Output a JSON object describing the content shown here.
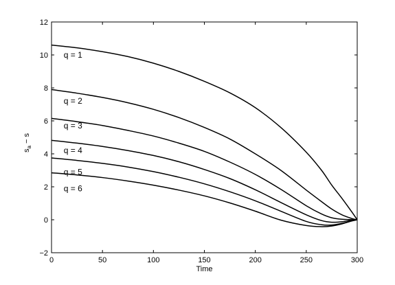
{
  "chart_data": {
    "type": "line",
    "title": "",
    "xlabel": "Time",
    "ylabel": {
      "base": "s",
      "sub": "a",
      "rest": " − s"
    },
    "xlim": [
      0,
      300
    ],
    "ylim": [
      -2,
      12
    ],
    "xticks": [
      0,
      50,
      100,
      150,
      200,
      250,
      300
    ],
    "yticks": [
      -2,
      0,
      2,
      4,
      6,
      8,
      10,
      12
    ],
    "grid": false,
    "legend": "none",
    "line_color": "#000000",
    "series": [
      {
        "name": "q = 1",
        "label_at": [
          12,
          10.0
        ],
        "points": [
          [
            0,
            10.6
          ],
          [
            25,
            10.43
          ],
          [
            50,
            10.2
          ],
          [
            75,
            9.9
          ],
          [
            100,
            9.5
          ],
          [
            125,
            9.0
          ],
          [
            150,
            8.4
          ],
          [
            175,
            7.7
          ],
          [
            200,
            6.8
          ],
          [
            225,
            5.6
          ],
          [
            250,
            4.1
          ],
          [
            265,
            3.0
          ],
          [
            275,
            2.1
          ],
          [
            285,
            1.3
          ],
          [
            295,
            0.45
          ],
          [
            300,
            0
          ]
        ]
      },
      {
        "name": "q = 2",
        "label_at": [
          12,
          7.2
        ],
        "points": [
          [
            0,
            7.9
          ],
          [
            25,
            7.68
          ],
          [
            50,
            7.42
          ],
          [
            75,
            7.1
          ],
          [
            100,
            6.7
          ],
          [
            125,
            6.2
          ],
          [
            150,
            5.6
          ],
          [
            175,
            4.9
          ],
          [
            200,
            4.0
          ],
          [
            225,
            3.0
          ],
          [
            250,
            1.8
          ],
          [
            265,
            1.1
          ],
          [
            275,
            0.65
          ],
          [
            285,
            0.3
          ],
          [
            295,
            0.07
          ],
          [
            300,
            0
          ]
        ]
      },
      {
        "name": "q = 3",
        "label_at": [
          12,
          5.7
        ],
        "points": [
          [
            0,
            6.15
          ],
          [
            25,
            5.95
          ],
          [
            50,
            5.72
          ],
          [
            75,
            5.42
          ],
          [
            100,
            5.08
          ],
          [
            125,
            4.65
          ],
          [
            150,
            4.15
          ],
          [
            175,
            3.5
          ],
          [
            200,
            2.75
          ],
          [
            225,
            1.85
          ],
          [
            250,
            0.85
          ],
          [
            265,
            0.35
          ],
          [
            275,
            0.12
          ],
          [
            285,
            0.03
          ],
          [
            300,
            0
          ]
        ]
      },
      {
        "name": "q = 4",
        "label_at": [
          12,
          4.2
        ],
        "points": [
          [
            0,
            4.82
          ],
          [
            25,
            4.65
          ],
          [
            50,
            4.45
          ],
          [
            75,
            4.2
          ],
          [
            100,
            3.9
          ],
          [
            125,
            3.52
          ],
          [
            150,
            3.05
          ],
          [
            175,
            2.5
          ],
          [
            200,
            1.82
          ],
          [
            225,
            1.05
          ],
          [
            250,
            0.3
          ],
          [
            265,
            -0.05
          ],
          [
            275,
            -0.15
          ],
          [
            285,
            -0.12
          ],
          [
            295,
            -0.02
          ],
          [
            300,
            0
          ]
        ]
      },
      {
        "name": "q = 5",
        "label_at": [
          12,
          2.9
        ],
        "points": [
          [
            0,
            3.75
          ],
          [
            25,
            3.6
          ],
          [
            50,
            3.42
          ],
          [
            75,
            3.2
          ],
          [
            100,
            2.92
          ],
          [
            125,
            2.58
          ],
          [
            150,
            2.18
          ],
          [
            175,
            1.7
          ],
          [
            200,
            1.15
          ],
          [
            225,
            0.52
          ],
          [
            250,
            -0.1
          ],
          [
            265,
            -0.3
          ],
          [
            275,
            -0.32
          ],
          [
            285,
            -0.22
          ],
          [
            295,
            -0.06
          ],
          [
            300,
            0
          ]
        ]
      },
      {
        "name": "q = 6",
        "label_at": [
          12,
          1.9
        ],
        "points": [
          [
            0,
            2.85
          ],
          [
            25,
            2.72
          ],
          [
            50,
            2.56
          ],
          [
            75,
            2.35
          ],
          [
            100,
            2.1
          ],
          [
            125,
            1.8
          ],
          [
            150,
            1.45
          ],
          [
            175,
            1.02
          ],
          [
            200,
            0.52
          ],
          [
            225,
            -0.02
          ],
          [
            250,
            -0.35
          ],
          [
            265,
            -0.42
          ],
          [
            275,
            -0.38
          ],
          [
            285,
            -0.25
          ],
          [
            295,
            -0.07
          ],
          [
            300,
            0
          ]
        ]
      }
    ]
  }
}
